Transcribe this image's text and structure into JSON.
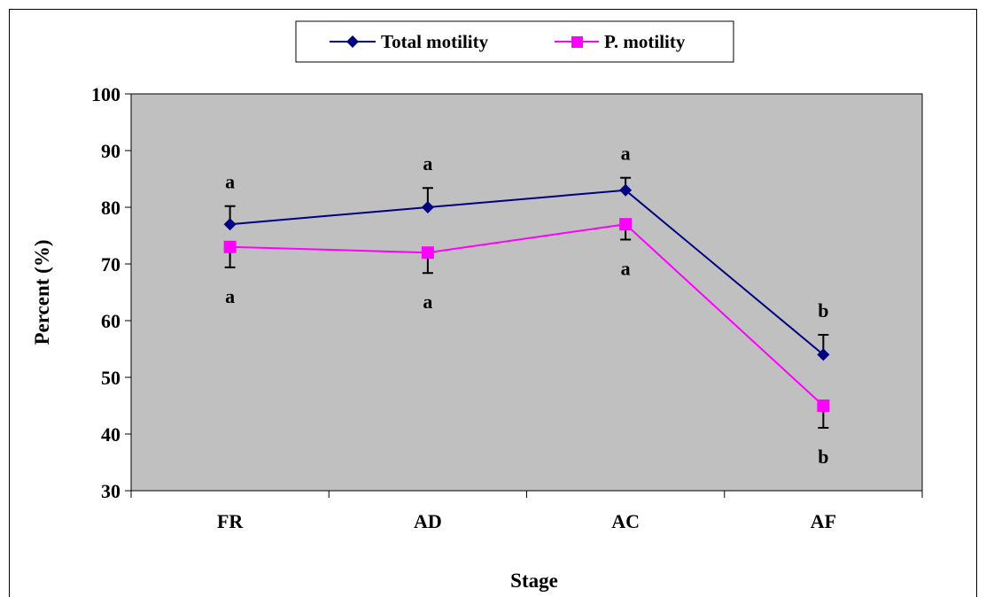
{
  "chart_data": {
    "type": "line",
    "title": "",
    "xlabel": "Stage",
    "ylabel": "Percent (%)",
    "categories": [
      "FR",
      "AD",
      "AC",
      "AF"
    ],
    "ylim": [
      30,
      100
    ],
    "yticks": [
      30,
      40,
      50,
      60,
      70,
      80,
      90,
      100
    ],
    "grid": false,
    "legend_position": "top-center",
    "plot_background": "#c0c0c0",
    "series": [
      {
        "name": "Total motility",
        "color": "#000080",
        "marker": "diamond",
        "values": [
          77,
          80,
          83,
          54
        ],
        "errors": [
          3.2,
          3.4,
          2.2,
          3.5
        ],
        "error_direction": "up",
        "annotations": [
          "a",
          "a",
          "a",
          "b"
        ],
        "annotation_position": "above"
      },
      {
        "name": "P. motility",
        "color": "#ff00ff",
        "marker": "square",
        "values": [
          73,
          72,
          77,
          45
        ],
        "errors": [
          3.6,
          3.6,
          2.7,
          3.9
        ],
        "error_direction": "down",
        "annotations": [
          "a",
          "a",
          "a",
          "b"
        ],
        "annotation_position": "below"
      }
    ]
  }
}
